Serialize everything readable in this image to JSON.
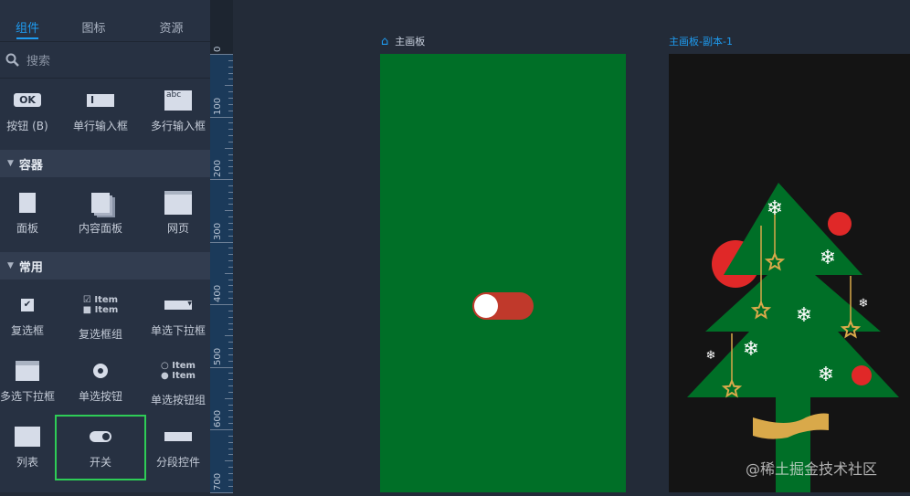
{
  "sidebar": {
    "tabs": [
      {
        "label": "组件",
        "active": true
      },
      {
        "label": "图标"
      },
      {
        "label": "资源"
      }
    ],
    "search": {
      "placeholder": "搜索"
    },
    "basic": [
      {
        "label": "按钮 (B)",
        "icon": "ok-button-icon",
        "icon_text": "OK"
      },
      {
        "label": "单行输入框",
        "icon": "text-input-icon"
      },
      {
        "label": "多行输入框",
        "icon": "textarea-icon",
        "icon_text": "abc"
      }
    ],
    "sections": [
      {
        "title": "容器",
        "items": [
          {
            "label": "面板",
            "icon": "panel-icon"
          },
          {
            "label": "内容面板",
            "icon": "content-panel-icon"
          },
          {
            "label": "网页",
            "icon": "webpage-icon"
          }
        ]
      },
      {
        "title": "常用",
        "items": [
          {
            "label": "复选框",
            "icon": "checkbox-icon"
          },
          {
            "label": "复选框组",
            "icon": "checkbox-group-icon",
            "icon_text": "Item"
          },
          {
            "label": "单选下拉框",
            "icon": "dropdown-icon"
          },
          {
            "label": "多选下拉框",
            "icon": "multi-dropdown-icon"
          },
          {
            "label": "单选按钮",
            "icon": "radio-icon"
          },
          {
            "label": "单选按钮组",
            "icon": "radio-group-icon",
            "icon_text": "Item"
          },
          {
            "label": "列表",
            "icon": "list-icon"
          },
          {
            "label": "开关",
            "icon": "switch-icon",
            "selected": true
          },
          {
            "label": "分段控件",
            "icon": "segmented-icon"
          }
        ]
      }
    ]
  },
  "ruler": {
    "labels": [
      "0",
      "100",
      "200",
      "300",
      "400",
      "500",
      "600",
      "700"
    ]
  },
  "canvas": {
    "artboards": [
      {
        "label": "主画板",
        "color": "#006f27",
        "icon": "home-icon"
      },
      {
        "label": "主画板-副本-1",
        "color": "#141414"
      }
    ],
    "switch": {
      "on_color": "#c0392b",
      "state": "on"
    },
    "watermark": "@稀土掘金技术社区"
  },
  "colors": {
    "accent": "#1e9bf0",
    "selection": "#2ecc56"
  }
}
